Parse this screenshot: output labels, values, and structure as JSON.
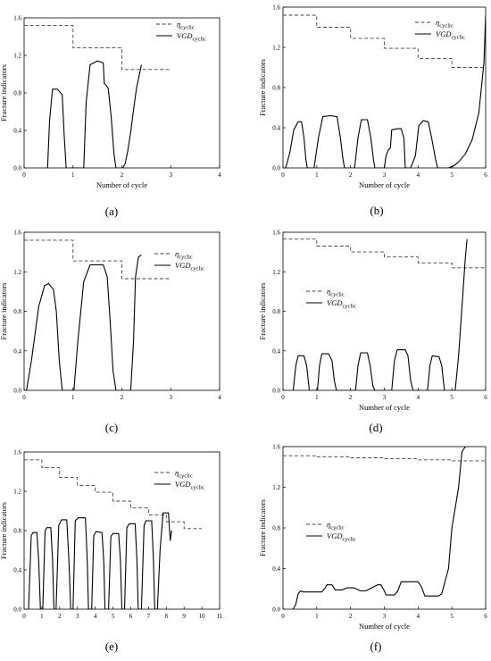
{
  "figure": {
    "panels": [
      "(a)",
      "(b)",
      "(c)",
      "(d)",
      "(e)",
      "(f)"
    ]
  },
  "chart_data": [
    {
      "panel": "(a)",
      "type": "line",
      "xlabel": "Number of cycle",
      "ylabel": "Fracture indicators",
      "xlim": [
        0,
        4
      ],
      "ylim": [
        0,
        1.6
      ],
      "xticks": [
        "0",
        "1",
        "2",
        "3",
        "4"
      ],
      "yticks": [
        "0.0",
        "0.4",
        "0.8",
        "1.2",
        "1.6"
      ],
      "legend_position": "top-right",
      "series": [
        {
          "name": "η",
          "subscript": "cyclic",
          "style": "dashed",
          "x": [
            0,
            1,
            1,
            2,
            2,
            3
          ],
          "y": [
            1.52,
            1.52,
            1.28,
            1.28,
            1.05,
            1.05
          ]
        },
        {
          "name": "VGD",
          "subscript": "cyclic",
          "style": "solid",
          "x": [
            0.48,
            0.52,
            0.58,
            0.68,
            0.78,
            0.82,
            0.86,
            1.22,
            1.27,
            1.35,
            1.5,
            1.62,
            1.64,
            1.68,
            1.72,
            1.78,
            1.84,
            1.88,
            1.95,
            2.02,
            2.07,
            2.12,
            2.18,
            2.24,
            2.3,
            2.36,
            2.4
          ],
          "y": [
            0,
            0.5,
            0.84,
            0.84,
            0.78,
            0.35,
            0,
            0,
            0.7,
            1.1,
            1.14,
            1.12,
            0.9,
            0.88,
            0.85,
            0.55,
            0.15,
            0,
            0,
            0,
            0.05,
            0.18,
            0.38,
            0.62,
            0.85,
            1.0,
            1.1
          ]
        }
      ]
    },
    {
      "panel": "(b)",
      "type": "line",
      "xlabel": "Number of cycle",
      "ylabel": "Fracture indicators",
      "xlim": [
        0,
        6
      ],
      "ylim": [
        0,
        1.6
      ],
      "xticks": [
        "0",
        "1",
        "2",
        "3",
        "4",
        "5",
        "6"
      ],
      "yticks": [
        "0.0",
        "0.4",
        "0.8",
        "1.2",
        "1.6"
      ],
      "legend_position": "top-right",
      "series": [
        {
          "name": "η",
          "subscript": "cyclic",
          "style": "dashed",
          "x": [
            0,
            1,
            1,
            2,
            2,
            3,
            3,
            4,
            4,
            5,
            5,
            6
          ],
          "y": [
            1.52,
            1.52,
            1.4,
            1.4,
            1.29,
            1.29,
            1.19,
            1.19,
            1.09,
            1.09,
            1.0,
            1.0
          ]
        },
        {
          "name": "VGD",
          "subscript": "cyclic",
          "style": "solid",
          "x": [
            0.08,
            0.2,
            0.32,
            0.45,
            0.55,
            0.62,
            0.68,
            0.72,
            0.92,
            1.05,
            1.18,
            1.4,
            1.6,
            1.7,
            1.78,
            1.82,
            2.12,
            2.22,
            2.32,
            2.5,
            2.6,
            2.68,
            2.72,
            3.0,
            3.05,
            3.12,
            3.18,
            3.22,
            3.4,
            3.5,
            3.58,
            3.62,
            3.78,
            3.92,
            4.02,
            4.15,
            4.3,
            4.4,
            4.52,
            4.58,
            4.9,
            5.05,
            5.2,
            5.4,
            5.6,
            5.8,
            5.95,
            6.0
          ],
          "y": [
            0,
            0.15,
            0.38,
            0.46,
            0.46,
            0.3,
            0.08,
            0,
            0,
            0.3,
            0.51,
            0.52,
            0.51,
            0.3,
            0.08,
            0,
            0,
            0.3,
            0.48,
            0.48,
            0.3,
            0.08,
            0,
            0,
            0.12,
            0.18,
            0.2,
            0.38,
            0.39,
            0.39,
            0.3,
            0,
            0,
            0.12,
            0.42,
            0.47,
            0.46,
            0.3,
            0.08,
            0,
            0,
            0.02,
            0.06,
            0.14,
            0.28,
            0.55,
            1.05,
            1.52
          ]
        }
      ]
    },
    {
      "panel": "(c)",
      "type": "line",
      "xlabel": "",
      "ylabel": "Fracture indicators",
      "xlim": [
        0,
        4
      ],
      "ylim": [
        0,
        1.6
      ],
      "xticks": [
        "0",
        "1",
        "2",
        "3",
        "4"
      ],
      "yticks": [
        "0.0",
        "0.4",
        "0.8",
        "1.2",
        "1.6"
      ],
      "legend_position": "top-right",
      "series": [
        {
          "name": "η",
          "subscript": "cyclic",
          "style": "dashed",
          "x": [
            0,
            1,
            1,
            2,
            2,
            3
          ],
          "y": [
            1.52,
            1.52,
            1.31,
            1.31,
            1.13,
            1.13
          ]
        },
        {
          "name": "VGD",
          "subscript": "cyclic",
          "style": "solid",
          "x": [
            0.05,
            0.15,
            0.3,
            0.42,
            0.5,
            0.6,
            0.66,
            0.72,
            0.78,
            1.02,
            1.1,
            1.22,
            1.35,
            1.62,
            1.7,
            1.76,
            1.82,
            1.88,
            2.18,
            2.24,
            2.28,
            2.34,
            2.4
          ],
          "y": [
            0,
            0.3,
            0.85,
            1.06,
            1.08,
            1.02,
            0.8,
            0.3,
            0,
            0,
            0.5,
            1.1,
            1.27,
            1.27,
            1.15,
            0.7,
            0.2,
            0,
            0,
            0.5,
            1.15,
            1.35,
            1.37
          ]
        }
      ]
    },
    {
      "panel": "(d)",
      "type": "line",
      "xlabel": "Number of cycle",
      "ylabel": "Fracture indicators",
      "xlim": [
        0,
        6
      ],
      "ylim": [
        0,
        1.6
      ],
      "xticks": [
        "0",
        "1",
        "2",
        "3",
        "4",
        "5",
        "6"
      ],
      "yticks": [
        "0.0",
        "0.4",
        "0.8",
        "1.2",
        "1.6"
      ],
      "legend_position": "middle-right",
      "series": [
        {
          "name": "η",
          "subscript": "cyclic",
          "style": "dashed",
          "x": [
            0,
            1,
            1,
            2,
            2,
            3,
            3,
            4,
            4,
            5,
            5,
            6
          ],
          "y": [
            1.53,
            1.53,
            1.46,
            1.46,
            1.4,
            1.4,
            1.35,
            1.35,
            1.29,
            1.29,
            1.24,
            1.24
          ]
        },
        {
          "name": "VGD",
          "subscript": "cyclic",
          "style": "solid",
          "x": [
            0.3,
            0.38,
            0.45,
            0.62,
            0.7,
            0.78,
            1.02,
            1.08,
            1.15,
            1.35,
            1.45,
            1.52,
            1.58,
            2.15,
            2.22,
            2.3,
            2.5,
            2.58,
            2.66,
            2.72,
            3.22,
            3.3,
            3.38,
            3.62,
            3.7,
            3.78,
            3.85,
            4.28,
            4.35,
            4.42,
            4.62,
            4.7,
            4.78,
            5.1,
            5.2,
            5.32,
            5.4,
            5.45
          ],
          "y": [
            0,
            0.25,
            0.35,
            0.35,
            0.25,
            0,
            0,
            0.25,
            0.37,
            0.37,
            0.3,
            0.1,
            0,
            0,
            0.25,
            0.38,
            0.38,
            0.25,
            0.05,
            0,
            0,
            0.3,
            0.41,
            0.41,
            0.35,
            0.1,
            0,
            0,
            0.25,
            0.35,
            0.34,
            0.25,
            0,
            0,
            0.35,
            0.95,
            1.35,
            1.53
          ]
        }
      ]
    },
    {
      "panel": "(e)",
      "type": "line",
      "xlabel": "",
      "ylabel": "Fracture indicators",
      "xlim": [
        0,
        11
      ],
      "ylim": [
        0,
        1.6
      ],
      "xticks": [
        "0",
        "1",
        "2",
        "3",
        "4",
        "5",
        "6",
        "7",
        "8",
        "9",
        "10",
        "11"
      ],
      "yticks": [
        "0.0",
        "0.4",
        "0.8",
        "1.2",
        "1.6"
      ],
      "legend_position": "top-right",
      "series": [
        {
          "name": "η",
          "subscript": "cyclic",
          "style": "dashed",
          "x": [
            0,
            1,
            1,
            2,
            2,
            3,
            3,
            4,
            4,
            5,
            5,
            6,
            6,
            7,
            7,
            8,
            8,
            9,
            9,
            10
          ],
          "y": [
            1.52,
            1.52,
            1.44,
            1.44,
            1.34,
            1.34,
            1.26,
            1.26,
            1.19,
            1.19,
            1.1,
            1.1,
            1.03,
            1.03,
            0.96,
            0.96,
            0.89,
            0.89,
            0.82,
            0.82
          ]
        },
        {
          "name": "VGD",
          "subscript": "cyclic",
          "style": "solid",
          "x": [
            0.25,
            0.4,
            0.5,
            0.72,
            0.82,
            0.92,
            1.05,
            1.18,
            1.28,
            1.5,
            1.6,
            1.68,
            1.8,
            1.95,
            2.1,
            2.4,
            2.52,
            2.62,
            2.75,
            2.88,
            3.05,
            3.45,
            3.55,
            3.62,
            3.8,
            3.92,
            4.05,
            4.38,
            4.48,
            4.55,
            4.75,
            4.88,
            5.0,
            5.32,
            5.42,
            5.5,
            5.65,
            5.78,
            5.92,
            6.25,
            6.35,
            6.42,
            6.6,
            6.75,
            6.85,
            7.18,
            7.28,
            7.35,
            7.5,
            7.65,
            7.82,
            8.12,
            8.22,
            8.3
          ],
          "y": [
            0,
            0.75,
            0.78,
            0.78,
            0.5,
            0,
            0,
            0.8,
            0.83,
            0.83,
            0.5,
            0,
            0,
            0.85,
            0.91,
            0.91,
            0.5,
            0,
            0,
            0.9,
            0.93,
            0.93,
            0.5,
            0,
            0,
            0.75,
            0.79,
            0.78,
            0.5,
            0,
            0,
            0.74,
            0.77,
            0.77,
            0.5,
            0,
            0,
            0.83,
            0.87,
            0.87,
            0.5,
            0,
            0,
            0.85,
            0.9,
            0.9,
            0.5,
            0,
            0,
            0.6,
            0.98,
            0.98,
            0.7,
            0.8
          ]
        }
      ]
    },
    {
      "panel": "(f)",
      "type": "line",
      "xlabel": "Number of cycle",
      "ylabel": "Fracture indicators",
      "xlim": [
        0,
        6
      ],
      "ylim": [
        0,
        1.6
      ],
      "xticks": [
        "0",
        "1",
        "2",
        "3",
        "4",
        "5",
        "6"
      ],
      "yticks": [
        "0.0",
        "0.4",
        "0.8",
        "1.2",
        "1.6"
      ],
      "legend_position": "middle-left",
      "series": [
        {
          "name": "η",
          "subscript": "cyclic",
          "style": "dashed",
          "x": [
            0,
            1,
            1,
            2,
            2,
            3,
            3,
            4,
            4,
            5,
            5,
            6
          ],
          "y": [
            1.51,
            1.51,
            1.5,
            1.5,
            1.49,
            1.49,
            1.48,
            1.48,
            1.47,
            1.47,
            1.46,
            1.46
          ]
        },
        {
          "name": "VGD",
          "subscript": "cyclic",
          "style": "solid",
          "x": [
            0.3,
            0.38,
            0.45,
            0.52,
            0.6,
            0.7,
            1.15,
            1.25,
            1.3,
            1.45,
            1.55,
            1.62,
            1.75,
            1.9,
            2.0,
            2.1,
            2.3,
            2.4,
            2.45,
            2.8,
            2.9,
            3.0,
            3.05,
            3.3,
            3.4,
            3.5,
            3.7,
            4.0,
            4.1,
            4.2,
            4.3,
            4.6,
            4.7,
            4.9,
            5.0,
            5.2,
            5.3,
            5.4,
            5.5
          ],
          "y": [
            0,
            0.05,
            0.15,
            0.18,
            0.17,
            0.17,
            0.17,
            0.21,
            0.24,
            0.24,
            0.19,
            0.19,
            0.19,
            0.21,
            0.21,
            0.21,
            0.18,
            0.18,
            0.18,
            0.24,
            0.24,
            0.18,
            0.14,
            0.14,
            0.18,
            0.27,
            0.27,
            0.27,
            0.22,
            0.13,
            0.13,
            0.13,
            0.15,
            0.4,
            0.8,
            1.2,
            1.55,
            1.6,
            1.6
          ]
        }
      ]
    }
  ]
}
